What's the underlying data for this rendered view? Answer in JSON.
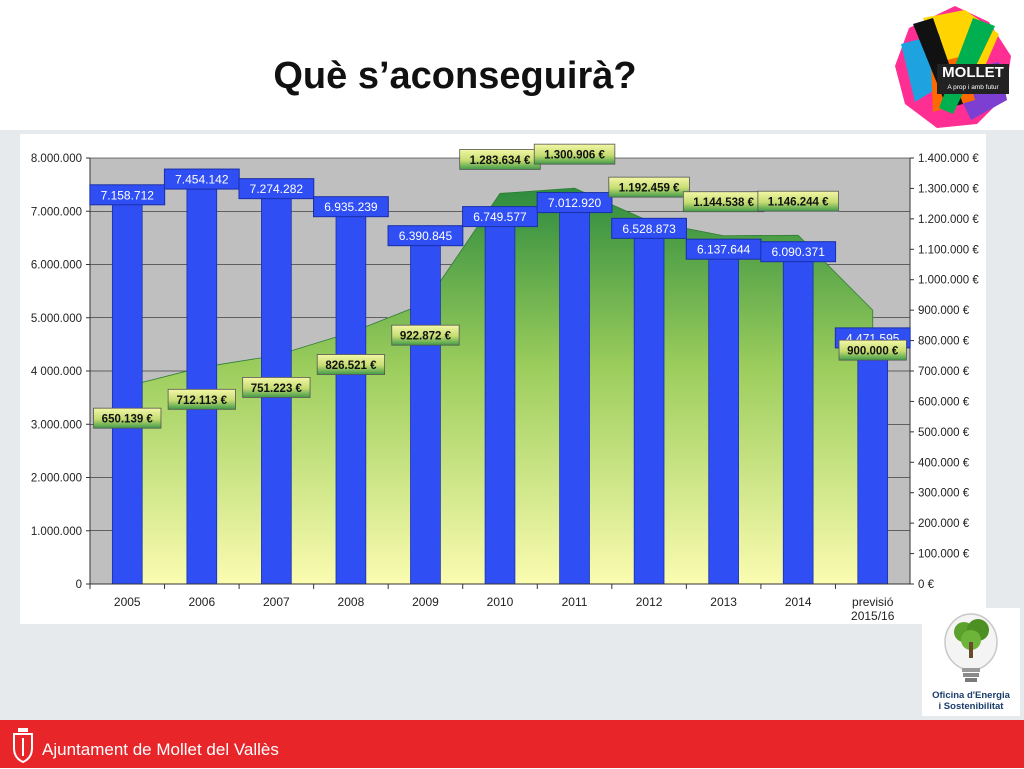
{
  "slide": {
    "title": "Què s’aconseguirà?",
    "footer_text": "Ajuntament de Mollet del Vallès",
    "logo_text": "MOLLET",
    "logo_subtext": "A prop i amb futur",
    "office_line1": "Oficina d'Energia",
    "office_line2": "i Sostenibilitat"
  },
  "colors": {
    "bar": "#2f4ff5",
    "bar_stroke": "#1a2fa8",
    "area_top": "#2e8b3e",
    "area_bottom": "#fbfcb0",
    "plot_bg": "#bfbfbf",
    "footer": "#e8262a"
  },
  "chart_data": {
    "type": "bar",
    "categories": [
      "2005",
      "2006",
      "2007",
      "2008",
      "2009",
      "2010",
      "2011",
      "2012",
      "2013",
      "2014",
      "previsió 2015/16"
    ],
    "series": [
      {
        "type": "bar",
        "axis": "left",
        "values": [
          7158712,
          7454142,
          7274282,
          6935239,
          6390845,
          6749577,
          7012920,
          6528873,
          6137644,
          6090371,
          4471595
        ],
        "labels": [
          "7.158.712",
          "7.454.142",
          "7.274.282",
          "6.935.239",
          "6.390.845",
          "6.749.577",
          "7.012.920",
          "6.528.873",
          "6.137.644",
          "6.090.371",
          "4.471.595"
        ]
      },
      {
        "type": "area",
        "axis": "right",
        "values": [
          650139,
          712113,
          751223,
          826521,
          922872,
          1283634,
          1300906,
          1192459,
          1144538,
          1146244,
          900000
        ],
        "labels": [
          "650.139 €",
          "712.113 €",
          "751.223 €",
          "826.521 €",
          "922.872 €",
          "1.283.634 €",
          "1.300.906 €",
          "1.192.459 €",
          "1.144.538 €",
          "1.146.244 €",
          "900.000 €"
        ]
      }
    ],
    "y_left": {
      "range": [
        0,
        8000000
      ],
      "ticks": [
        0,
        1000000,
        2000000,
        3000000,
        4000000,
        5000000,
        6000000,
        7000000,
        8000000
      ],
      "tick_labels": [
        "0",
        "1.000.000",
        "2.000.000",
        "3.000.000",
        "4 000.000",
        "5.000.000",
        "6.000.000",
        "7.000.000",
        "8.000.000"
      ]
    },
    "y_right": {
      "range": [
        0,
        1400000
      ],
      "ticks": [
        0,
        100000,
        200000,
        300000,
        400000,
        500000,
        600000,
        700000,
        800000,
        900000,
        1000000,
        1100000,
        1200000,
        1300000,
        1400000
      ],
      "tick_labels": [
        "0 €",
        "100.000 €",
        "200.000 €",
        "300.000 €",
        "400.000 €",
        "500.000 €",
        "600.000 €",
        "700.000 €",
        "800.000 €",
        "900.000 €",
        "1.000.000 €",
        "1.100.000 €",
        "1.200.000 €",
        "1.300.000 €",
        "1.400.000 €"
      ]
    },
    "grid": true,
    "legend": "none"
  }
}
